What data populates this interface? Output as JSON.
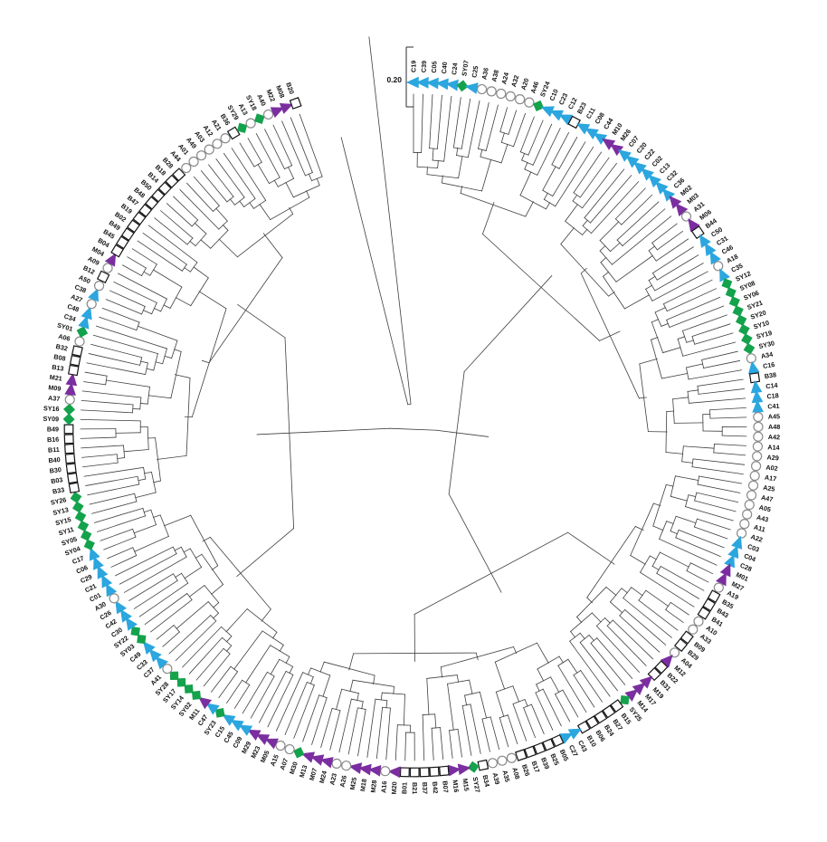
{
  "figure": {
    "kind": "circular-phylogenetic-dendrogram",
    "description": "Circular cladogram of 209 isolates labelled around the circumference, each tip carrying a population marker symbol"
  },
  "scale_bar": {
    "label": "0.20"
  },
  "colors": {
    "branch": "#3f3f3f",
    "blue": "#2BA6DF",
    "green": "#14A24C",
    "purple": "#7B2E9F",
    "white": "#ffffff",
    "circle_outline": "#8a8a8a",
    "square_outline": "#141414"
  },
  "marker_styles": {
    "circle": {
      "shape": "circle",
      "fill": "#ffffff",
      "stroke": "#8a8a8a"
    },
    "square": {
      "shape": "square",
      "fill": "#ffffff",
      "stroke": "#141414"
    },
    "blue": {
      "shape": "triangle",
      "fill": "#2BA6DF",
      "stroke": "#1d8fc4"
    },
    "green": {
      "shape": "diamond",
      "fill": "#14A24C",
      "stroke": "#0e8a3f"
    },
    "purple": {
      "shape": "triangle",
      "fill": "#7B2E9F",
      "stroke": "#662585"
    }
  },
  "leaves": [
    [
      "C19",
      "blue"
    ],
    [
      "C39",
      "blue"
    ],
    [
      "C05",
      "blue"
    ],
    [
      "C40",
      "blue"
    ],
    [
      "C24",
      "blue"
    ],
    [
      "SY07",
      "green"
    ],
    [
      "C25",
      "blue"
    ],
    [
      "A36",
      "circle"
    ],
    [
      "A38",
      "circle"
    ],
    [
      "A24",
      "circle"
    ],
    [
      "A32",
      "circle"
    ],
    [
      "A20",
      "circle"
    ],
    [
      "A46",
      "circle"
    ],
    [
      "SY24",
      "green"
    ],
    [
      "C10",
      "blue"
    ],
    [
      "C23",
      "blue"
    ],
    [
      "C12",
      "blue"
    ],
    [
      "B23",
      "square"
    ],
    [
      "C11",
      "blue"
    ],
    [
      "C08",
      "blue"
    ],
    [
      "C44",
      "blue"
    ],
    [
      "M10",
      "purple"
    ],
    [
      "M26",
      "purple"
    ],
    [
      "C07",
      "blue"
    ],
    [
      "C20",
      "blue"
    ],
    [
      "C22",
      "blue"
    ],
    [
      "C02",
      "blue"
    ],
    [
      "C13",
      "blue"
    ],
    [
      "C32",
      "blue"
    ],
    [
      "C36",
      "blue"
    ],
    [
      "M02",
      "purple"
    ],
    [
      "M03",
      "purple"
    ],
    [
      "A31",
      "circle"
    ],
    [
      "M06",
      "purple"
    ],
    [
      "B44",
      "square"
    ],
    [
      "C50",
      "blue"
    ],
    [
      "C31",
      "blue"
    ],
    [
      "C46",
      "blue"
    ],
    [
      "A18",
      "circle"
    ],
    [
      "C35",
      "blue"
    ],
    [
      "SY12",
      "green"
    ],
    [
      "SY08",
      "green"
    ],
    [
      "SY06",
      "green"
    ],
    [
      "SY21",
      "green"
    ],
    [
      "SY20",
      "green"
    ],
    [
      "SY10",
      "green"
    ],
    [
      "SY19",
      "green"
    ],
    [
      "SY30",
      "green"
    ],
    [
      "A34",
      "circle"
    ],
    [
      "C16",
      "blue"
    ],
    [
      "B38",
      "square"
    ],
    [
      "C14",
      "blue"
    ],
    [
      "C18",
      "blue"
    ],
    [
      "C41",
      "blue"
    ],
    [
      "A45",
      "circle"
    ],
    [
      "A48",
      "circle"
    ],
    [
      "A42",
      "circle"
    ],
    [
      "A14",
      "circle"
    ],
    [
      "A29",
      "circle"
    ],
    [
      "A02",
      "circle"
    ],
    [
      "A17",
      "circle"
    ],
    [
      "A25",
      "circle"
    ],
    [
      "A47",
      "circle"
    ],
    [
      "A05",
      "circle"
    ],
    [
      "A43",
      "circle"
    ],
    [
      "A11",
      "circle"
    ],
    [
      "A22",
      "circle"
    ],
    [
      "C03",
      "blue"
    ],
    [
      "C04",
      "blue"
    ],
    [
      "C28",
      "blue"
    ],
    [
      "M01",
      "purple"
    ],
    [
      "M27",
      "purple"
    ],
    [
      "A19",
      "circle"
    ],
    [
      "B35",
      "square"
    ],
    [
      "B43",
      "square"
    ],
    [
      "B41",
      "square"
    ],
    [
      "A10",
      "circle"
    ],
    [
      "A33",
      "circle"
    ],
    [
      "B09",
      "square"
    ],
    [
      "B29",
      "square"
    ],
    [
      "A04",
      "circle"
    ],
    [
      "M12",
      "purple"
    ],
    [
      "B22",
      "square"
    ],
    [
      "B31",
      "square"
    ],
    [
      "M19",
      "purple"
    ],
    [
      "M17",
      "purple"
    ],
    [
      "M14",
      "purple"
    ],
    [
      "SY25",
      "green"
    ],
    [
      "B15",
      "square"
    ],
    [
      "B27",
      "square"
    ],
    [
      "B24",
      "square"
    ],
    [
      "B06",
      "square"
    ],
    [
      "B10",
      "square"
    ],
    [
      "C43",
      "blue"
    ],
    [
      "C27",
      "blue"
    ],
    [
      "B05",
      "square"
    ],
    [
      "B25",
      "square"
    ],
    [
      "B39",
      "square"
    ],
    [
      "B17",
      "square"
    ],
    [
      "B26",
      "square"
    ],
    [
      "A08",
      "circle"
    ],
    [
      "A35",
      "circle"
    ],
    [
      "A39",
      "circle"
    ],
    [
      "B34",
      "square"
    ],
    [
      "SY27",
      "green"
    ],
    [
      "M15",
      "purple"
    ],
    [
      "M16",
      "purple"
    ],
    [
      "B07",
      "square"
    ],
    [
      "B42",
      "square"
    ],
    [
      "B37",
      "square"
    ],
    [
      "B21",
      "square"
    ],
    [
      "B01",
      "square"
    ],
    [
      "M20",
      "purple"
    ],
    [
      "A16",
      "circle"
    ],
    [
      "M28",
      "purple"
    ],
    [
      "M18",
      "purple"
    ],
    [
      "M25",
      "purple"
    ],
    [
      "A26",
      "circle"
    ],
    [
      "A23",
      "circle"
    ],
    [
      "M24",
      "purple"
    ],
    [
      "M07",
      "purple"
    ],
    [
      "M13",
      "purple"
    ],
    [
      "M30",
      "green"
    ],
    [
      "A07",
      "circle"
    ],
    [
      "A15",
      "circle"
    ],
    [
      "M05",
      "purple"
    ],
    [
      "M23",
      "purple"
    ],
    [
      "M29",
      "purple"
    ],
    [
      "C09",
      "blue"
    ],
    [
      "C45",
      "blue"
    ],
    [
      "C15",
      "blue"
    ],
    [
      "SY23",
      "green"
    ],
    [
      "C47",
      "blue"
    ],
    [
      "M11",
      "purple"
    ],
    [
      "SY02",
      "green"
    ],
    [
      "SY14",
      "green"
    ],
    [
      "SY17",
      "green"
    ],
    [
      "SY28",
      "green"
    ],
    [
      "A41",
      "circle"
    ],
    [
      "C37",
      "blue"
    ],
    [
      "C33",
      "blue"
    ],
    [
      "C49",
      "blue"
    ],
    [
      "SY03",
      "green"
    ],
    [
      "SY22",
      "green"
    ],
    [
      "C30",
      "blue"
    ],
    [
      "C42",
      "blue"
    ],
    [
      "C26",
      "blue"
    ],
    [
      "A30",
      "circle"
    ],
    [
      "C01",
      "blue"
    ],
    [
      "C21",
      "blue"
    ],
    [
      "C29",
      "blue"
    ],
    [
      "C06",
      "blue"
    ],
    [
      "C17",
      "blue"
    ],
    [
      "SY04",
      "green"
    ],
    [
      "SY05",
      "green"
    ],
    [
      "SY11",
      "green"
    ],
    [
      "SY15",
      "green"
    ],
    [
      "SY13",
      "green"
    ],
    [
      "SY26",
      "green"
    ],
    [
      "B33",
      "square"
    ],
    [
      "B03",
      "square"
    ],
    [
      "B30",
      "square"
    ],
    [
      "B40",
      "square"
    ],
    [
      "B11",
      "square"
    ],
    [
      "B16",
      "square"
    ],
    [
      "B49",
      "square"
    ],
    [
      "SY09",
      "green"
    ],
    [
      "SY16",
      "green"
    ],
    [
      "A37",
      "circle"
    ],
    [
      "M09",
      "purple"
    ],
    [
      "M21",
      "purple"
    ],
    [
      "B13",
      "square"
    ],
    [
      "B08",
      "square"
    ],
    [
      "B32",
      "square"
    ],
    [
      "A06",
      "circle"
    ],
    [
      "SY01",
      "green"
    ],
    [
      "C34",
      "blue"
    ],
    [
      "C48",
      "blue"
    ],
    [
      "A27",
      "circle"
    ],
    [
      "C38",
      "blue"
    ],
    [
      "A50",
      "circle"
    ],
    [
      "B12",
      "square"
    ],
    [
      "A09",
      "circle"
    ],
    [
      "M04",
      "purple"
    ],
    [
      "B04",
      "square"
    ],
    [
      "B45",
      "square"
    ],
    [
      "B49",
      "square"
    ],
    [
      "B02",
      "square"
    ],
    [
      "B19",
      "square"
    ],
    [
      "B47",
      "square"
    ],
    [
      "B48",
      "square"
    ],
    [
      "B50",
      "square"
    ],
    [
      "B14",
      "square"
    ],
    [
      "B18",
      "square"
    ],
    [
      "B28",
      "square"
    ],
    [
      "A44",
      "circle"
    ],
    [
      "A01",
      "circle"
    ],
    [
      "A49",
      "circle"
    ],
    [
      "A03",
      "circle"
    ],
    [
      "A12",
      "circle"
    ],
    [
      "A21",
      "circle"
    ],
    [
      "B36",
      "square"
    ],
    [
      "SY29",
      "green"
    ],
    [
      "A13",
      "circle"
    ],
    [
      "SY18",
      "green"
    ],
    [
      "A40",
      "circle"
    ],
    [
      "M22",
      "purple"
    ],
    [
      "M08",
      "purple"
    ],
    [
      "B20",
      "square"
    ]
  ]
}
